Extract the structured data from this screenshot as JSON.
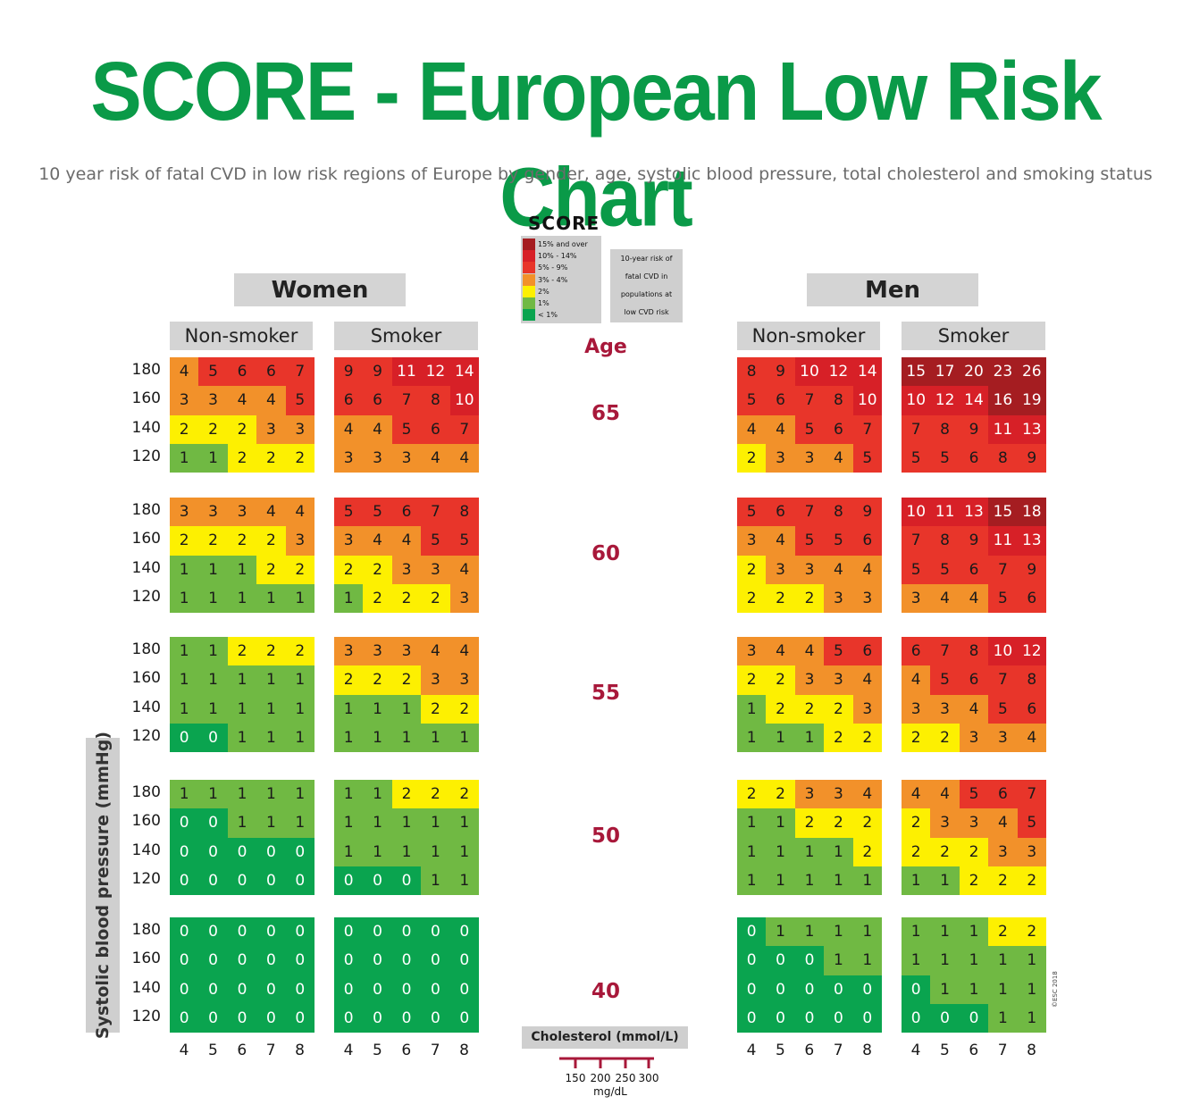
{
  "title": "SCORE - European Low Risk Chart",
  "subtitle": "10 year risk of fatal CVD in low risk regions of Europe by gender, age, systolic blood pressure, total cholesterol and smoking status",
  "legend": {
    "logo": "SCORE",
    "items": [
      {
        "label": "15% and over",
        "color": "#a51d21"
      },
      {
        "label": "10% - 14%",
        "color": "#d72027"
      },
      {
        "label": "5% - 9%",
        "color": "#e8352a"
      },
      {
        "label": "3% - 4%",
        "color": "#f2912a"
      },
      {
        "label": "2%",
        "color": "#fdf001"
      },
      {
        "label": "1%",
        "color": "#70b943"
      },
      {
        "label": "< 1%",
        "color": "#0aa44f"
      }
    ],
    "note": [
      "10-year risk of",
      "fatal CVD in",
      "populations at",
      "low CVD risk"
    ]
  },
  "labels": {
    "women": "Women",
    "men": "Men",
    "non_smoker": "Non-smoker",
    "smoker": "Smoker",
    "age": "Age",
    "y_axis": "Systolic blood pressure (mmHg)",
    "x_axis": "Cholesterol (mmol/L)",
    "mg_unit": "mg/dL",
    "mg_ticks": [
      "150",
      "200",
      "250",
      "300"
    ],
    "copyright": "©ESC 2018"
  },
  "colors": {
    "title_green": "#0a9a48",
    "age_red": "#a8183a",
    "panel_gray": "#d4d4d4"
  },
  "chart_data": {
    "type": "heatmap",
    "title": "SCORE - European Low Risk Chart",
    "subtitle": "10 year risk of fatal CVD in low risk regions of Europe by gender, age, systolic blood pressure, total cholesterol and smoking status",
    "xlabel": "Cholesterol (mmol/L)",
    "ylabel": "Systolic blood pressure (mmHg)",
    "x_ticks": [
      "4",
      "5",
      "6",
      "7",
      "8"
    ],
    "y_ticks": [
      "180",
      "160",
      "140",
      "120"
    ],
    "ages": [
      "65",
      "60",
      "55",
      "50",
      "40"
    ],
    "units": "% 10-year risk of fatal CVD",
    "panels": {
      "women_nonsmoker": {
        "65": [
          [
            4,
            5,
            6,
            6,
            7
          ],
          [
            3,
            3,
            4,
            4,
            5
          ],
          [
            2,
            2,
            2,
            3,
            3
          ],
          [
            1,
            1,
            2,
            2,
            2
          ]
        ],
        "60": [
          [
            3,
            3,
            3,
            4,
            4
          ],
          [
            2,
            2,
            2,
            2,
            3
          ],
          [
            1,
            1,
            1,
            2,
            2
          ],
          [
            1,
            1,
            1,
            1,
            1
          ]
        ],
        "55": [
          [
            1,
            1,
            2,
            2,
            2
          ],
          [
            1,
            1,
            1,
            1,
            1
          ],
          [
            1,
            1,
            1,
            1,
            1
          ],
          [
            0,
            0,
            1,
            1,
            1
          ]
        ],
        "50": [
          [
            1,
            1,
            1,
            1,
            1
          ],
          [
            0,
            0,
            1,
            1,
            1
          ],
          [
            0,
            0,
            0,
            0,
            0
          ],
          [
            0,
            0,
            0,
            0,
            0
          ]
        ],
        "40": [
          [
            0,
            0,
            0,
            0,
            0
          ],
          [
            0,
            0,
            0,
            0,
            0
          ],
          [
            0,
            0,
            0,
            0,
            0
          ],
          [
            0,
            0,
            0,
            0,
            0
          ]
        ]
      },
      "women_smoker": {
        "65": [
          [
            9,
            9,
            11,
            12,
            14
          ],
          [
            6,
            6,
            7,
            8,
            10
          ],
          [
            4,
            4,
            5,
            6,
            7
          ],
          [
            3,
            3,
            3,
            4,
            4
          ]
        ],
        "60": [
          [
            5,
            5,
            6,
            7,
            8
          ],
          [
            3,
            4,
            4,
            5,
            5
          ],
          [
            2,
            2,
            3,
            3,
            4
          ],
          [
            1,
            2,
            2,
            2,
            3
          ]
        ],
        "55": [
          [
            3,
            3,
            3,
            4,
            4
          ],
          [
            2,
            2,
            2,
            3,
            3
          ],
          [
            1,
            1,
            1,
            2,
            2
          ],
          [
            1,
            1,
            1,
            1,
            1
          ]
        ],
        "50": [
          [
            1,
            1,
            2,
            2,
            2
          ],
          [
            1,
            1,
            1,
            1,
            1
          ],
          [
            1,
            1,
            1,
            1,
            1
          ],
          [
            0,
            0,
            0,
            1,
            1
          ]
        ],
        "40": [
          [
            0,
            0,
            0,
            0,
            0
          ],
          [
            0,
            0,
            0,
            0,
            0
          ],
          [
            0,
            0,
            0,
            0,
            0
          ],
          [
            0,
            0,
            0,
            0,
            0
          ]
        ]
      },
      "men_nonsmoker": {
        "65": [
          [
            8,
            9,
            10,
            12,
            14
          ],
          [
            5,
            6,
            7,
            8,
            10
          ],
          [
            4,
            4,
            5,
            6,
            7
          ],
          [
            2,
            3,
            3,
            4,
            5
          ]
        ],
        "60": [
          [
            5,
            6,
            7,
            8,
            9
          ],
          [
            3,
            4,
            5,
            5,
            6
          ],
          [
            2,
            3,
            3,
            4,
            4
          ],
          [
            2,
            2,
            2,
            3,
            3
          ]
        ],
        "55": [
          [
            3,
            4,
            4,
            5,
            6
          ],
          [
            2,
            2,
            3,
            3,
            4
          ],
          [
            1,
            2,
            2,
            2,
            3
          ],
          [
            1,
            1,
            1,
            2,
            2
          ]
        ],
        "50": [
          [
            2,
            2,
            3,
            3,
            4
          ],
          [
            1,
            1,
            2,
            2,
            2
          ],
          [
            1,
            1,
            1,
            1,
            2
          ],
          [
            1,
            1,
            1,
            1,
            1
          ]
        ],
        "40": [
          [
            0,
            1,
            1,
            1,
            1
          ],
          [
            0,
            0,
            0,
            1,
            1
          ],
          [
            0,
            0,
            0,
            0,
            0
          ],
          [
            0,
            0,
            0,
            0,
            0
          ]
        ]
      },
      "men_smoker": {
        "65": [
          [
            15,
            17,
            20,
            23,
            26
          ],
          [
            10,
            12,
            14,
            16,
            19
          ],
          [
            7,
            8,
            9,
            11,
            13
          ],
          [
            5,
            5,
            6,
            8,
            9
          ]
        ],
        "60": [
          [
            10,
            11,
            13,
            15,
            18
          ],
          [
            7,
            8,
            9,
            11,
            13
          ],
          [
            5,
            5,
            6,
            7,
            9
          ],
          [
            3,
            4,
            4,
            5,
            6
          ]
        ],
        "55": [
          [
            6,
            7,
            8,
            10,
            12
          ],
          [
            4,
            5,
            6,
            7,
            8
          ],
          [
            3,
            3,
            4,
            5,
            6
          ],
          [
            2,
            2,
            3,
            3,
            4
          ]
        ],
        "50": [
          [
            4,
            4,
            5,
            6,
            7
          ],
          [
            2,
            3,
            3,
            4,
            5
          ],
          [
            2,
            2,
            2,
            3,
            3
          ],
          [
            1,
            1,
            2,
            2,
            2
          ]
        ],
        "40": [
          [
            1,
            1,
            1,
            2,
            2
          ],
          [
            1,
            1,
            1,
            1,
            1
          ],
          [
            0,
            1,
            1,
            1,
            1
          ],
          [
            0,
            0,
            0,
            1,
            1
          ]
        ]
      }
    }
  }
}
